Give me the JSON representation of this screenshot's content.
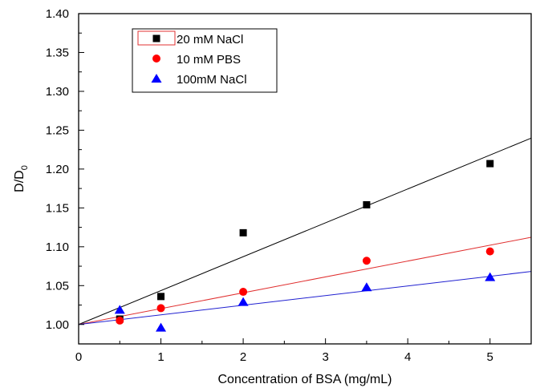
{
  "chart_data": {
    "type": "scatter",
    "xlabel": "Concentration of BSA (mg/mL)",
    "ylabel_main": "D/D",
    "ylabel_sub": "0",
    "xlim": [
      0,
      5.5
    ],
    "ylim": [
      0.975,
      1.4
    ],
    "xticks": [
      "0",
      "1",
      "2",
      "3",
      "4",
      "5"
    ],
    "yticks": [
      "1.00",
      "1.05",
      "1.10",
      "1.15",
      "1.20",
      "1.25",
      "1.30",
      "1.35",
      "1.40"
    ],
    "grid": false,
    "legend_position": "top-left",
    "series": [
      {
        "name": "20 mM NaCl",
        "marker": "square",
        "color": "#000000",
        "line_color": "#000000",
        "x": [
          0.5,
          1,
          2,
          3.5,
          5
        ],
        "y": [
          1.007,
          1.036,
          1.118,
          1.154,
          1.207
        ],
        "fit": {
          "intercept": 1.0,
          "slope": 0.0436
        }
      },
      {
        "name": "10 mM PBS",
        "marker": "circle",
        "color": "#ff0000",
        "line_color": "#e03030",
        "x": [
          0.5,
          1,
          2,
          3.5,
          5
        ],
        "y": [
          1.005,
          1.021,
          1.042,
          1.082,
          1.094
        ],
        "fit": {
          "intercept": 1.0,
          "slope": 0.0204
        }
      },
      {
        "name": "100mM NaCl",
        "marker": "triangle",
        "color": "#0000ff",
        "line_color": "#2020d0",
        "x": [
          0.5,
          1,
          2,
          3.5,
          5
        ],
        "y": [
          1.019,
          0.996,
          1.029,
          1.048,
          1.061
        ],
        "fit": {
          "intercept": 1.0,
          "slope": 0.0124
        }
      }
    ]
  }
}
